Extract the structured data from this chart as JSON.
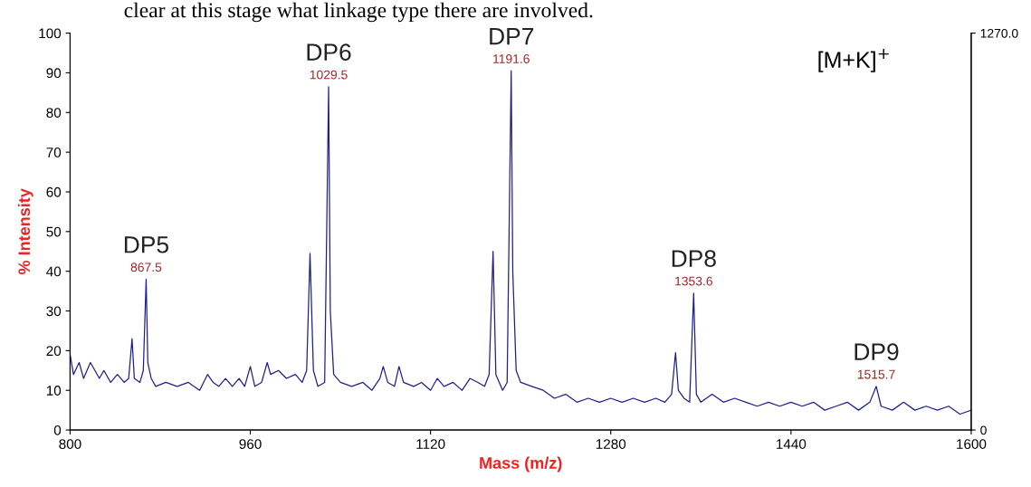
{
  "chart_data": {
    "type": "line",
    "xlabel": "Mass (m/z)",
    "ylabel": "% Intensity",
    "xlim": [
      800,
      1600
    ],
    "xticks": [
      800,
      960,
      1120,
      1280,
      1440,
      1600
    ],
    "ylim": [
      0,
      100
    ],
    "yticks": [
      0,
      10,
      20,
      30,
      40,
      50,
      60,
      70,
      80,
      90,
      100
    ],
    "y2lim": [
      0,
      1270
    ],
    "y2ticks": [
      0,
      {
        "value": 1270,
        "label": "1270.0"
      }
    ],
    "grid": false,
    "legend": false,
    "marker": "none",
    "line_style": "solid",
    "x": [
      800,
      803,
      808,
      812,
      818,
      822,
      826,
      830,
      836,
      842,
      848,
      852,
      855,
      857,
      862,
      865,
      867.5,
      869,
      872,
      876,
      885,
      895,
      905,
      915,
      922,
      927,
      932,
      938,
      944,
      950,
      955,
      960,
      964,
      970,
      975,
      978,
      985,
      992,
      1000,
      1006,
      1010,
      1013,
      1016,
      1020,
      1026,
      1029.5,
      1031,
      1034,
      1040,
      1050,
      1060,
      1068,
      1075,
      1078,
      1082,
      1088,
      1092,
      1096,
      1105,
      1112,
      1120,
      1126,
      1132,
      1140,
      1148,
      1155,
      1162,
      1168,
      1172,
      1175.5,
      1178,
      1184,
      1188,
      1191.6,
      1193,
      1196,
      1200,
      1210,
      1220,
      1230,
      1240,
      1250,
      1260,
      1270,
      1280,
      1290,
      1300,
      1310,
      1320,
      1328,
      1334,
      1337.5,
      1340,
      1345,
      1350,
      1353.6,
      1356,
      1360,
      1370,
      1380,
      1390,
      1400,
      1410,
      1420,
      1430,
      1440,
      1450,
      1460,
      1470,
      1480,
      1490,
      1500,
      1510,
      1515.7,
      1520,
      1530,
      1540,
      1550,
      1560,
      1570,
      1580,
      1590,
      1600
    ],
    "series": [
      {
        "color": "#1f1f8f",
        "values": [
          19,
          14,
          17,
          13,
          17,
          15,
          13,
          15,
          12,
          14,
          12,
          13,
          23,
          13,
          12,
          15,
          38,
          17,
          13,
          11,
          12,
          11,
          12,
          10,
          14,
          12,
          11,
          13,
          11,
          13,
          11,
          16,
          11,
          12,
          17,
          14,
          15,
          13,
          14,
          12,
          15,
          44.5,
          15,
          11,
          12,
          86.5,
          30,
          14,
          12,
          11,
          12,
          10,
          13,
          16,
          12,
          11,
          16,
          12,
          11,
          12,
          10,
          13,
          11,
          12,
          10,
          13,
          12,
          11,
          14,
          45,
          14,
          10,
          12,
          90.5,
          40,
          15,
          12,
          11,
          10,
          8,
          9,
          7,
          8,
          7,
          8,
          7,
          8,
          7,
          8,
          7,
          9,
          19.5,
          10,
          8,
          7,
          34.5,
          9,
          7,
          9,
          7,
          8,
          7,
          6,
          7,
          6,
          7,
          6,
          7,
          5,
          6,
          7,
          5,
          7,
          11,
          6,
          5,
          7,
          5,
          6,
          5,
          6,
          4,
          5
        ]
      }
    ],
    "annotations": [
      "clear at this stage what linkage type there are involved.",
      "[M+K]$^{+}$",
      {
        "text": "DP5",
        "x": 867.5,
        "y": 38
      },
      {
        "text": "867.5",
        "x": 867.5,
        "y": 38
      },
      {
        "text": "DP6",
        "x": 1029.5,
        "y": 86.5
      },
      {
        "text": "1029.5",
        "x": 1029.5,
        "y": 86.5
      },
      {
        "text": "DP7",
        "x": 1191.6,
        "y": 90.5
      },
      {
        "text": "1191.6",
        "x": 1191.6,
        "y": 90.5
      },
      {
        "text": "DP8",
        "x": 1353.6,
        "y": 34.5
      },
      {
        "text": "1353.6",
        "x": 1353.6,
        "y": 34.5
      },
      {
        "text": "DP9",
        "x": 1515.7,
        "y": 11
      },
      {
        "text": "1515.7",
        "x": 1515.7,
        "y": 11
      }
    ]
  }
}
